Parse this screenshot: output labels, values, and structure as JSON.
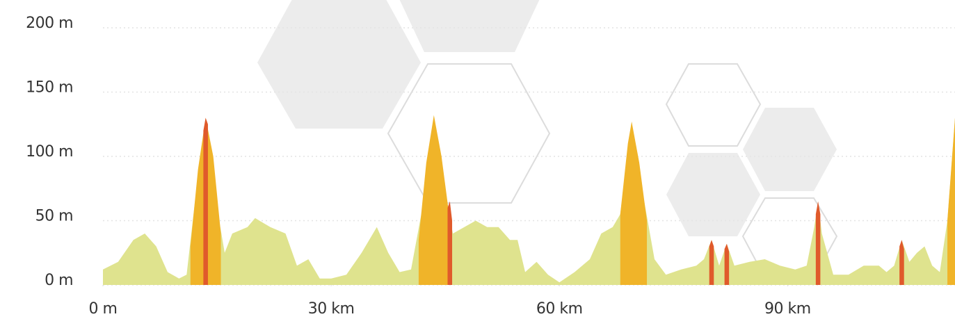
{
  "chart_data": {
    "type": "area",
    "xlim": [
      0,
      112
    ],
    "ylim": [
      0,
      200
    ],
    "xticks": [
      {
        "value": 0,
        "label": "0 m"
      },
      {
        "value": 30,
        "label": "30 km"
      },
      {
        "value": 60,
        "label": "60 km"
      },
      {
        "value": 90,
        "label": "90 km"
      }
    ],
    "yticks": [
      {
        "value": 0,
        "label": "0 m"
      },
      {
        "value": 50,
        "label": "50 m"
      },
      {
        "value": 100,
        "label": "100 m"
      },
      {
        "value": 150,
        "label": "150 m"
      },
      {
        "value": 200,
        "label": "200 m"
      }
    ],
    "grid": true,
    "series": [
      {
        "color": "#dfe38e",
        "x": [
          0,
          2,
          4,
          5.5,
          7,
          8.5,
          10,
          11,
          12,
          13.5,
          15,
          16,
          17,
          19,
          20,
          22,
          24,
          25.5,
          27,
          28.5,
          30,
          32,
          34,
          36,
          37.5,
          39,
          40.5,
          42,
          43.5,
          45,
          46,
          47.5,
          49,
          50.5,
          52,
          53.5,
          54.5,
          55.5,
          57,
          58.5,
          60,
          62,
          64,
          65.5,
          67,
          68,
          69.5,
          71,
          72.5,
          74,
          76,
          78,
          79,
          80,
          81,
          82,
          83,
          85,
          87,
          89,
          91,
          92.5,
          93.5,
          94,
          94.5,
          96,
          98,
          100,
          102,
          103,
          104,
          105,
          106,
          107,
          108,
          109,
          110,
          111,
          112
        ],
        "values": [
          12,
          18,
          35,
          40,
          30,
          10,
          5,
          8,
          60,
          130,
          60,
          25,
          40,
          45,
          52,
          45,
          40,
          15,
          20,
          5,
          5,
          8,
          25,
          45,
          25,
          10,
          12,
          60,
          132,
          70,
          40,
          45,
          50,
          45,
          45,
          35,
          35,
          10,
          18,
          8,
          2,
          10,
          20,
          40,
          45,
          55,
          127,
          70,
          20,
          8,
          12,
          15,
          20,
          35,
          15,
          32,
          15,
          18,
          20,
          15,
          12,
          15,
          45,
          65,
          40,
          8,
          8,
          15,
          15,
          10,
          15,
          35,
          18,
          25,
          30,
          15,
          10,
          50,
          130
        ]
      },
      {
        "color": "#f0b429",
        "x": [
          11.5,
          12.5,
          13.5,
          14.5,
          15.5
        ],
        "values": [
          30,
          90,
          130,
          100,
          40
        ]
      },
      {
        "color": "#f0b429",
        "x": [
          41.5,
          42.5,
          43.5,
          44.5,
          45.5
        ],
        "values": [
          35,
          95,
          132,
          100,
          55
        ]
      },
      {
        "color": "#f0b429",
        "x": [
          68,
          69,
          69.5,
          70.5,
          71.5
        ],
        "values": [
          55,
          110,
          127,
          95,
          50
        ]
      },
      {
        "color": "#f0b429",
        "x": [
          111,
          111.5,
          112
        ],
        "values": [
          50,
          90,
          130
        ]
      },
      {
        "color": "#e05a2b",
        "x": [
          13.2,
          13.5,
          13.8
        ],
        "values": [
          120,
          130,
          125
        ]
      },
      {
        "color": "#e05a2b",
        "x": [
          45.3,
          45.6,
          45.9
        ],
        "values": [
          60,
          65,
          50
        ]
      },
      {
        "color": "#e05a2b",
        "x": [
          79.7,
          80,
          80.3
        ],
        "values": [
          30,
          35,
          30
        ]
      },
      {
        "color": "#e05a2b",
        "x": [
          81.7,
          82,
          82.3
        ],
        "values": [
          28,
          32,
          26
        ]
      },
      {
        "color": "#e05a2b",
        "x": [
          93.7,
          94,
          94.3
        ],
        "values": [
          55,
          65,
          55
        ]
      },
      {
        "color": "#e05a2b",
        "x": [
          104.7,
          105,
          105.3
        ],
        "values": [
          30,
          35,
          28
        ]
      }
    ]
  }
}
